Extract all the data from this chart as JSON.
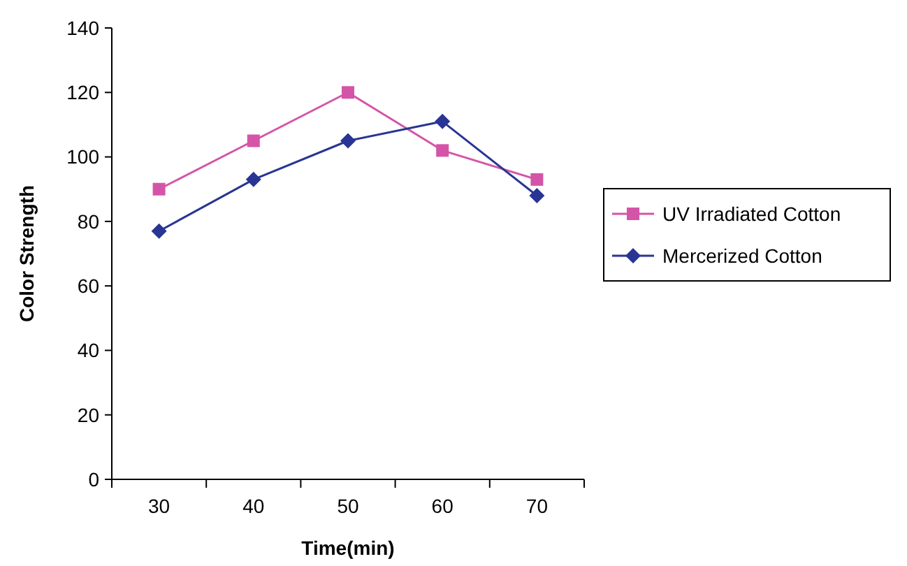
{
  "chart_data": {
    "type": "line",
    "xlabel": "Time(min)",
    "ylabel": "Color Strength",
    "categories": [
      "30",
      "40",
      "50",
      "60",
      "70"
    ],
    "series": [
      {
        "name": "UV Irradiated Cotton",
        "color": "#d455a8",
        "marker": "square",
        "values": [
          90,
          105,
          120,
          102,
          93
        ]
      },
      {
        "name": "Mercerized Cotton",
        "color": "#283593",
        "marker": "diamond",
        "values": [
          77,
          93,
          105,
          111,
          88
        ]
      }
    ],
    "ylim": [
      0,
      140
    ],
    "yticks": [
      0,
      20,
      40,
      60,
      80,
      100,
      120,
      140
    ],
    "grid": false,
    "legend": "right"
  }
}
